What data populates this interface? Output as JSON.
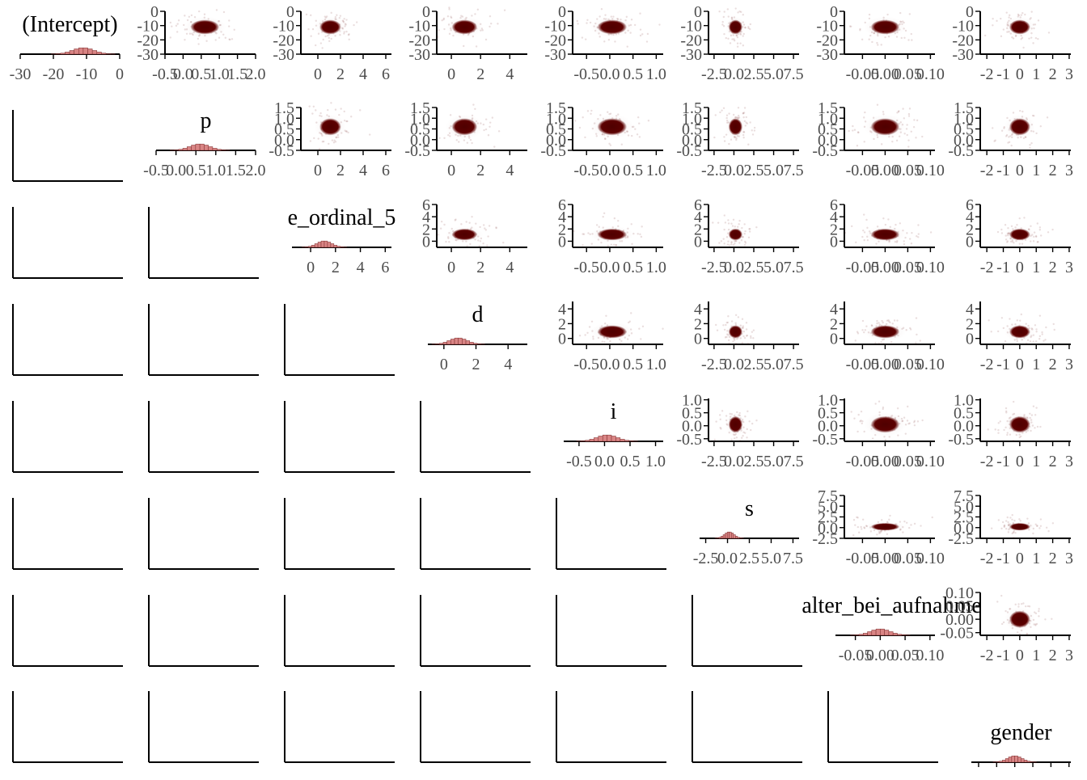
{
  "chart_data": {
    "type": "scatter",
    "layout": "pairs-matrix",
    "colors": {
      "hist_fill": "#d98585",
      "hist_stroke": "#7a2a2a",
      "scatter_core": "#5c0000",
      "scatter_halo": "#8b4a4a",
      "axis": "#000000",
      "tick_label": "#4d4d4d",
      "background": "#ffffff"
    },
    "parameters": [
      {
        "name": "(Intercept)",
        "xlim": [
          -30,
          0
        ],
        "ticks": [
          -30,
          -20,
          -10,
          0
        ],
        "tick_labels": [
          "-30",
          "-20",
          "-10",
          "0"
        ],
        "ylim": [
          -30,
          0
        ],
        "y_ticks": [
          0,
          -10,
          -20,
          -30
        ],
        "y_tick_labels": [
          "0",
          "-10",
          "-20",
          "-30"
        ],
        "mean": -11,
        "sd": 3.2
      },
      {
        "name": "p",
        "xlim": [
          -0.5,
          2.0
        ],
        "ticks": [
          -0.5,
          0.0,
          0.5,
          1.0,
          1.5,
          2.0
        ],
        "tick_labels": [
          "-0.5",
          "0.0",
          "0.5",
          "1.0",
          "1.5",
          "2.0"
        ],
        "ylim": [
          -0.5,
          1.5
        ],
        "y_ticks": [
          1.5,
          1.0,
          0.5,
          0.0,
          -0.5
        ],
        "y_tick_labels": [
          "1.5",
          "1.0",
          "0.5",
          "0.0",
          "-0.5"
        ],
        "mean": 0.6,
        "sd": 0.25
      },
      {
        "name": "e_ordinal_5",
        "xlim": [
          -1.5,
          6.5
        ],
        "ticks": [
          0,
          2,
          4,
          6
        ],
        "tick_labels": [
          "0",
          "2",
          "4",
          "6"
        ],
        "ylim": [
          -1,
          6
        ],
        "y_ticks": [
          6,
          4,
          2,
          0
        ],
        "y_tick_labels": [
          "6",
          "4",
          "2",
          "0"
        ],
        "mean": 1.1,
        "sd": 0.6
      },
      {
        "name": "d",
        "xlim": [
          -1,
          5.2
        ],
        "ticks": [
          0,
          2,
          4
        ],
        "tick_labels": [
          "0",
          "2",
          "4"
        ],
        "ylim": [
          -0.8,
          5
        ],
        "y_ticks": [
          4,
          2,
          0
        ],
        "y_tick_labels": [
          "4",
          "2",
          "0"
        ],
        "mean": 0.9,
        "sd": 0.55
      },
      {
        "name": "i",
        "xlim": [
          -0.8,
          1.15
        ],
        "ticks": [
          -0.5,
          0.0,
          0.5,
          1.0
        ],
        "tick_labels": [
          "-0.5",
          "0.0",
          "0.5",
          "1.0"
        ],
        "ylim": [
          -0.6,
          1.05
        ],
        "y_ticks": [
          1.0,
          0.5,
          0.0,
          -0.5
        ],
        "y_tick_labels": [
          "1.0",
          "0.5",
          "0.0",
          "-0.5"
        ],
        "mean": 0.05,
        "sd": 0.2
      },
      {
        "name": "s",
        "xlim": [
          -3.2,
          8.2
        ],
        "ticks": [
          -2.5,
          0.0,
          2.5,
          5.0,
          7.5
        ],
        "tick_labels": [
          "-2.5",
          "0.0",
          "2.5",
          "5.0",
          "7.5"
        ],
        "ylim": [
          -2.5,
          7.5
        ],
        "y_ticks": [
          7.5,
          5.0,
          2.5,
          0.0,
          -2.5
        ],
        "y_tick_labels": [
          "7.5",
          "5.0",
          "2.5",
          "0.0",
          "-2.5"
        ],
        "mean": 0.2,
        "sd": 0.55
      },
      {
        "name": "alter_bei_aufnahme",
        "xlim": [
          -0.09,
          0.11
        ],
        "ticks": [
          -0.05,
          0.0,
          0.05,
          0.1
        ],
        "tick_labels": [
          "-0.05",
          "0.00",
          "0.05",
          "0.10"
        ],
        "ylim": [
          -0.06,
          0.1
        ],
        "y_ticks": [
          0.1,
          0.05,
          0.0,
          -0.05
        ],
        "y_tick_labels": [
          "0.10",
          "0.05",
          "0.00",
          "-0.05"
        ],
        "mean": 0.0,
        "sd": 0.02
      },
      {
        "name": "gender",
        "xlim": [
          -2.4,
          3.1
        ],
        "ticks": [
          -2,
          -1,
          0,
          1,
          2,
          3
        ],
        "tick_labels": [
          "-2",
          "-1",
          "0",
          "1",
          "2",
          "3"
        ],
        "ylim": [
          -2.4,
          3.1
        ],
        "y_ticks": [],
        "y_tick_labels": [],
        "mean": 0.0,
        "sd": 0.4
      }
    ]
  }
}
